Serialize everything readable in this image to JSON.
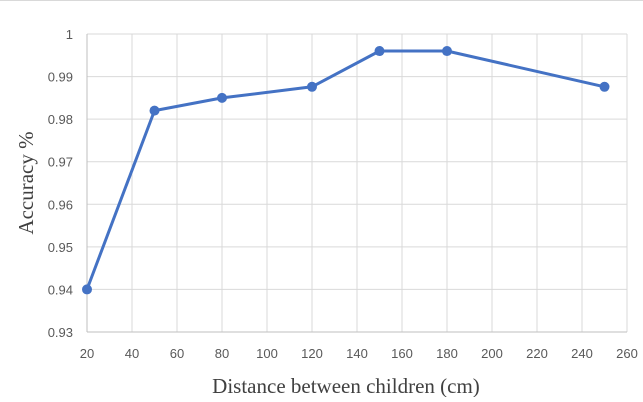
{
  "chart_data": {
    "type": "line",
    "title": "",
    "xlabel": "Distance between children (cm)",
    "ylabel": "Accuracy %",
    "xlim": [
      20,
      260
    ],
    "ylim": [
      0.93,
      1.0
    ],
    "x_ticks": [
      20,
      40,
      60,
      80,
      100,
      120,
      140,
      160,
      180,
      200,
      220,
      240,
      260
    ],
    "y_ticks": [
      0.93,
      0.94,
      0.95,
      0.96,
      0.97,
      0.98,
      0.99,
      1.0
    ],
    "x_tick_labels": [
      "20",
      "40",
      "60",
      "80",
      "100",
      "120",
      "140",
      "160",
      "180",
      "200",
      "220",
      "240",
      "260"
    ],
    "y_tick_labels": [
      "0.93",
      "0.94",
      "0.95",
      "0.96",
      "0.97",
      "0.98",
      "0.99",
      "1"
    ],
    "grid": true,
    "legend": "none",
    "series": [
      {
        "color": "#4472c4",
        "x": [
          20,
          50,
          80,
          120,
          150,
          180,
          250
        ],
        "y": [
          0.94,
          0.982,
          0.985,
          0.9876,
          0.996,
          0.996,
          0.9876
        ]
      }
    ]
  }
}
